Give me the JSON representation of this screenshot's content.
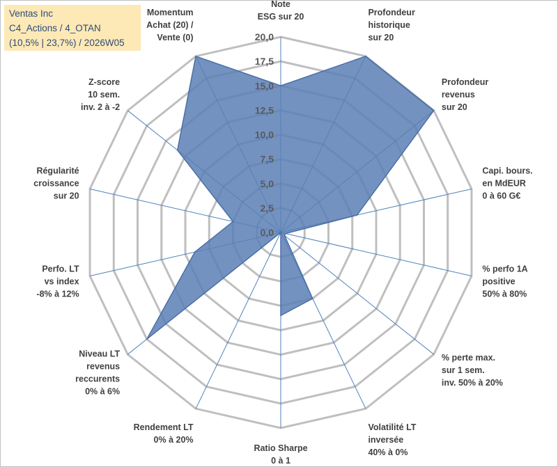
{
  "info": {
    "line1": "Ventas Inc",
    "line2": "C4_Actions / 4_OTAN",
    "line3": "(10,5% | 23,7%) / 2026W05"
  },
  "chart_data": {
    "type": "radar",
    "title": "",
    "rmax": 20,
    "ticks": [
      "0,0",
      "2,5",
      "5,0",
      "7,5",
      "10,0",
      "12,5",
      "15,0",
      "17,5",
      "20,0"
    ],
    "axes": [
      [
        "Note",
        "ESG sur 20"
      ],
      [
        "Profondeur",
        "historique",
        "sur 20"
      ],
      [
        "Profondeur",
        "revenus",
        "sur 20"
      ],
      [
        "Capi. bours.",
        "en MdEUR",
        "0 à 60 G€"
      ],
      [
        "% perfo 1A",
        "positive",
        "50% à 80%"
      ],
      [
        "% perte max.",
        "sur 1 sem.",
        "inv. 50% à 20%"
      ],
      [
        "Volatilité LT",
        "inversée",
        "40% à 0%"
      ],
      [
        "Ratio Sharpe",
        "0 à 1"
      ],
      [
        "Rendement LT",
        "0% à 20%"
      ],
      [
        "Niveau LT",
        "revenus",
        "reccurents",
        "0% à 6%"
      ],
      [
        "Perfo. LT",
        "vs index",
        "-8% à 12%"
      ],
      [
        "Régularité",
        "croissance",
        "sur 20"
      ],
      [
        "Z-score",
        "10 sem.",
        "inv. 2 à -2"
      ],
      [
        "Momentum",
        "Achat (20) /",
        "Vente (0)"
      ]
    ],
    "series": [
      {
        "name": "Ventas Inc",
        "values": [
          15.0,
          20.0,
          20.0,
          8.0,
          0.5,
          0.5,
          7.5,
          8.5,
          0.0,
          17.5,
          9.0,
          5.0,
          13.5,
          20.0
        ],
        "fill": "#5b7fb5",
        "stroke": "#4a6ea8"
      }
    ],
    "colors": {
      "grid": "#bfbfbf",
      "spoke": "#4f81bd"
    }
  }
}
